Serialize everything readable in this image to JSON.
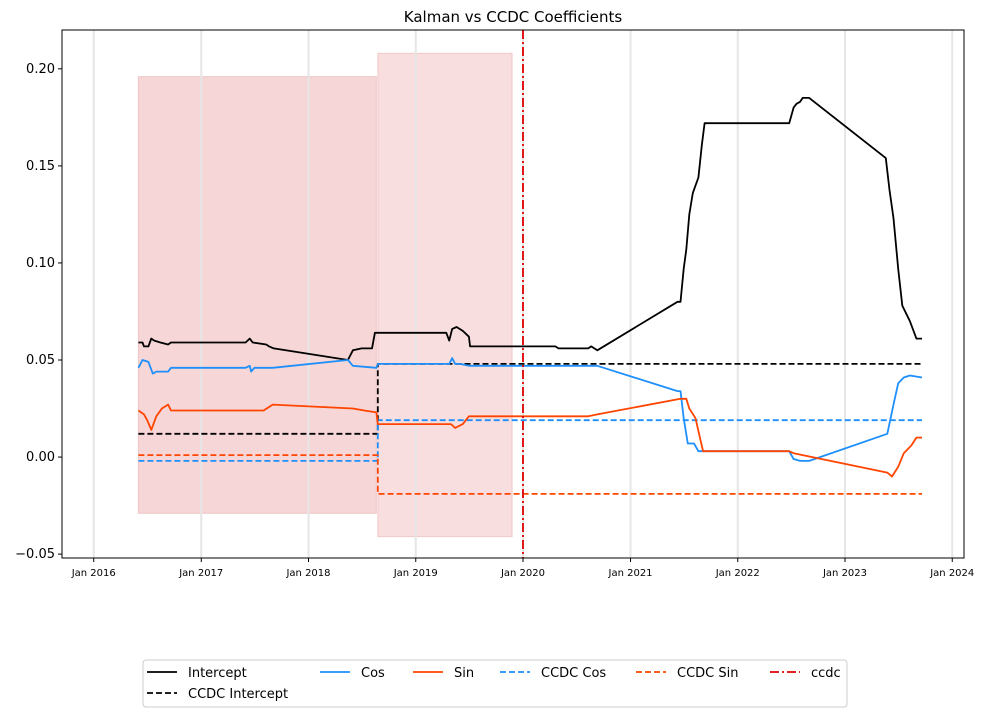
{
  "chart_data": {
    "type": "line",
    "title": "Kalman vs CCDC Coefficients",
    "xlabel": "",
    "ylabel": "",
    "x_range": [
      "2015-09-15",
      "2024-02-10"
    ],
    "ylim": [
      -0.052,
      0.22
    ],
    "x_ticks": [
      {
        "date": "2016-01-01",
        "label": "Jan 2016"
      },
      {
        "date": "2017-01-01",
        "label": "Jan 2017"
      },
      {
        "date": "2018-01-01",
        "label": "Jan 2018"
      },
      {
        "date": "2019-01-01",
        "label": "Jan 2019"
      },
      {
        "date": "2020-01-01",
        "label": "Jan 2020"
      },
      {
        "date": "2021-01-01",
        "label": "Jan 2021"
      },
      {
        "date": "2022-01-01",
        "label": "Jan 2022"
      },
      {
        "date": "2023-01-01",
        "label": "Jan 2023"
      },
      {
        "date": "2024-01-01",
        "label": "Jan 2024"
      }
    ],
    "y_ticks": [
      {
        "value": 0.2,
        "label": "0.20"
      },
      {
        "value": 0.15,
        "label": "0.15"
      },
      {
        "value": 0.1,
        "label": "0.10"
      },
      {
        "value": 0.05,
        "label": "0.05"
      },
      {
        "value": 0.0,
        "label": "0.00"
      },
      {
        "value": -0.05,
        "label": "−0.05"
      }
    ],
    "grid": "vertical",
    "shaded_regions": [
      {
        "start": "2016-06-01",
        "end": "2018-08-20",
        "ymin": -0.029,
        "ymax": 0.196,
        "color": "#f2c4c4"
      },
      {
        "start": "2018-08-25",
        "end": "2019-11-25",
        "ymin": -0.041,
        "ymax": 0.208,
        "color": "#f5d0d0"
      }
    ],
    "series": [
      {
        "name": "Intercept",
        "color": "#000000",
        "style": "solid",
        "points": [
          [
            "2016-06-01",
            0.059
          ],
          [
            "2016-06-15",
            0.059
          ],
          [
            "2016-06-20",
            0.057
          ],
          [
            "2016-07-05",
            0.057
          ],
          [
            "2016-07-15",
            0.061
          ],
          [
            "2016-07-25",
            0.06
          ],
          [
            "2016-08-15",
            0.059
          ],
          [
            "2016-09-10",
            0.058
          ],
          [
            "2016-09-20",
            0.059
          ],
          [
            "2017-06-01",
            0.059
          ],
          [
            "2017-06-15",
            0.061
          ],
          [
            "2017-06-25",
            0.059
          ],
          [
            "2017-08-10",
            0.058
          ],
          [
            "2017-08-20",
            0.057
          ],
          [
            "2017-09-05",
            0.056
          ],
          [
            "2018-05-15",
            0.05
          ],
          [
            "2018-06-01",
            0.055
          ],
          [
            "2018-07-01",
            0.056
          ],
          [
            "2018-08-05",
            0.056
          ],
          [
            "2018-08-15",
            0.064
          ],
          [
            "2019-04-15",
            0.064
          ],
          [
            "2019-04-25",
            0.06
          ],
          [
            "2019-05-05",
            0.066
          ],
          [
            "2019-05-20",
            0.067
          ],
          [
            "2019-06-10",
            0.065
          ],
          [
            "2019-07-01",
            0.062
          ],
          [
            "2019-07-05",
            0.057
          ],
          [
            "2020-04-20",
            0.057
          ],
          [
            "2020-05-01",
            0.056
          ],
          [
            "2020-08-10",
            0.056
          ],
          [
            "2020-08-20",
            0.057
          ],
          [
            "2020-09-10",
            0.055
          ],
          [
            "2021-06-10",
            0.08
          ],
          [
            "2021-06-20",
            0.08
          ],
          [
            "2021-07-01",
            0.097
          ],
          [
            "2021-07-10",
            0.107
          ],
          [
            "2021-07-20",
            0.125
          ],
          [
            "2021-08-01",
            0.136
          ],
          [
            "2021-08-20",
            0.144
          ],
          [
            "2021-09-01",
            0.161
          ],
          [
            "2021-09-10",
            0.172
          ],
          [
            "2022-06-25",
            0.172
          ],
          [
            "2022-07-10",
            0.18
          ],
          [
            "2022-07-20",
            0.182
          ],
          [
            "2022-08-01",
            0.183
          ],
          [
            "2022-08-10",
            0.185
          ],
          [
            "2022-09-01",
            0.185
          ],
          [
            "2023-05-20",
            0.154
          ],
          [
            "2023-06-01",
            0.138
          ],
          [
            "2023-06-15",
            0.123
          ],
          [
            "2023-07-01",
            0.097
          ],
          [
            "2023-07-15",
            0.078
          ],
          [
            "2023-08-10",
            0.07
          ],
          [
            "2023-09-01",
            0.061
          ],
          [
            "2023-09-20",
            0.061
          ]
        ]
      },
      {
        "name": "CCDC Intercept",
        "color": "#000000",
        "style": "dashed",
        "points": [
          [
            "2016-06-01",
            0.012
          ],
          [
            "2018-08-25",
            0.012
          ],
          [
            "2018-08-25",
            0.048
          ],
          [
            "2023-09-20",
            0.048
          ]
        ]
      },
      {
        "name": "Cos",
        "color": "#1e8ffb",
        "style": "solid",
        "points": [
          [
            "2016-06-01",
            0.046
          ],
          [
            "2016-06-15",
            0.05
          ],
          [
            "2016-07-05",
            0.049
          ],
          [
            "2016-07-20",
            0.043
          ],
          [
            "2016-08-01",
            0.044
          ],
          [
            "2016-09-10",
            0.044
          ],
          [
            "2016-09-20",
            0.046
          ],
          [
            "2017-06-01",
            0.046
          ],
          [
            "2017-06-15",
            0.047
          ],
          [
            "2017-06-20",
            0.044
          ],
          [
            "2017-07-01",
            0.046
          ],
          [
            "2017-09-01",
            0.046
          ],
          [
            "2018-05-15",
            0.05
          ],
          [
            "2018-06-01",
            0.047
          ],
          [
            "2018-08-20",
            0.046
          ],
          [
            "2018-08-25",
            0.048
          ],
          [
            "2019-04-25",
            0.048
          ],
          [
            "2019-05-05",
            0.051
          ],
          [
            "2019-05-15",
            0.048
          ],
          [
            "2019-06-01",
            0.048
          ],
          [
            "2019-07-01",
            0.047
          ],
          [
            "2020-09-10",
            0.047
          ],
          [
            "2021-06-10",
            0.034
          ],
          [
            "2021-06-20",
            0.034
          ],
          [
            "2021-07-01",
            0.02
          ],
          [
            "2021-07-15",
            0.007
          ],
          [
            "2021-08-05",
            0.007
          ],
          [
            "2021-08-20",
            0.003
          ],
          [
            "2021-09-10",
            0.003
          ],
          [
            "2022-06-25",
            0.003
          ],
          [
            "2022-07-10",
            -0.001
          ],
          [
            "2022-08-01",
            -0.002
          ],
          [
            "2022-09-01",
            -0.002
          ],
          [
            "2023-05-25",
            0.012
          ],
          [
            "2023-06-15",
            0.027
          ],
          [
            "2023-07-01",
            0.038
          ],
          [
            "2023-07-20",
            0.041
          ],
          [
            "2023-08-10",
            0.042
          ],
          [
            "2023-09-20",
            0.041
          ]
        ]
      },
      {
        "name": "CCDC Cos",
        "color": "#1e8ffb",
        "style": "dashed",
        "points": [
          [
            "2016-06-01",
            -0.002
          ],
          [
            "2018-08-25",
            -0.002
          ],
          [
            "2018-08-25",
            0.019
          ],
          [
            "2023-09-20",
            0.019
          ]
        ]
      },
      {
        "name": "Sin",
        "color": "#ff4500",
        "style": "solid",
        "points": [
          [
            "2016-06-01",
            0.024
          ],
          [
            "2016-06-20",
            0.022
          ],
          [
            "2016-07-01",
            0.019
          ],
          [
            "2016-07-15",
            0.014
          ],
          [
            "2016-08-01",
            0.021
          ],
          [
            "2016-08-20",
            0.025
          ],
          [
            "2016-09-10",
            0.027
          ],
          [
            "2016-09-20",
            0.024
          ],
          [
            "2017-08-01",
            0.024
          ],
          [
            "2017-09-01",
            0.027
          ],
          [
            "2018-06-01",
            0.025
          ],
          [
            "2018-07-10",
            0.024
          ],
          [
            "2018-08-20",
            0.023
          ],
          [
            "2018-08-25",
            0.017
          ],
          [
            "2019-05-01",
            0.017
          ],
          [
            "2019-05-15",
            0.015
          ],
          [
            "2019-06-10",
            0.017
          ],
          [
            "2019-07-01",
            0.021
          ],
          [
            "2020-08-10",
            0.021
          ],
          [
            "2020-09-10",
            0.022
          ],
          [
            "2021-06-20",
            0.03
          ],
          [
            "2021-07-10",
            0.03
          ],
          [
            "2021-07-20",
            0.025
          ],
          [
            "2021-08-10",
            0.02
          ],
          [
            "2021-08-25",
            0.01
          ],
          [
            "2021-09-05",
            0.003
          ],
          [
            "2022-06-25",
            0.003
          ],
          [
            "2022-07-10",
            0.002
          ],
          [
            "2023-05-25",
            -0.008
          ],
          [
            "2023-06-10",
            -0.01
          ],
          [
            "2023-07-01",
            -0.005
          ],
          [
            "2023-07-20",
            0.002
          ],
          [
            "2023-08-15",
            0.006
          ],
          [
            "2023-09-01",
            0.01
          ],
          [
            "2023-09-20",
            0.01
          ]
        ]
      },
      {
        "name": "CCDC Sin",
        "color": "#ff4500",
        "style": "dashed",
        "points": [
          [
            "2016-06-01",
            0.001
          ],
          [
            "2018-08-25",
            0.001
          ],
          [
            "2018-08-25",
            -0.019
          ],
          [
            "2023-09-20",
            -0.019
          ]
        ]
      },
      {
        "name": "ccdc",
        "color": "#e00000",
        "style": "dashdot",
        "kind": "vline",
        "date": "2020-01-01"
      }
    ],
    "legend": {
      "placement": "bottom-center",
      "columns": 6,
      "entries": [
        "Intercept",
        "CCDC Intercept",
        "Cos",
        "Sin",
        "CCDC Cos",
        "CCDC Sin",
        "ccdc"
      ]
    }
  }
}
